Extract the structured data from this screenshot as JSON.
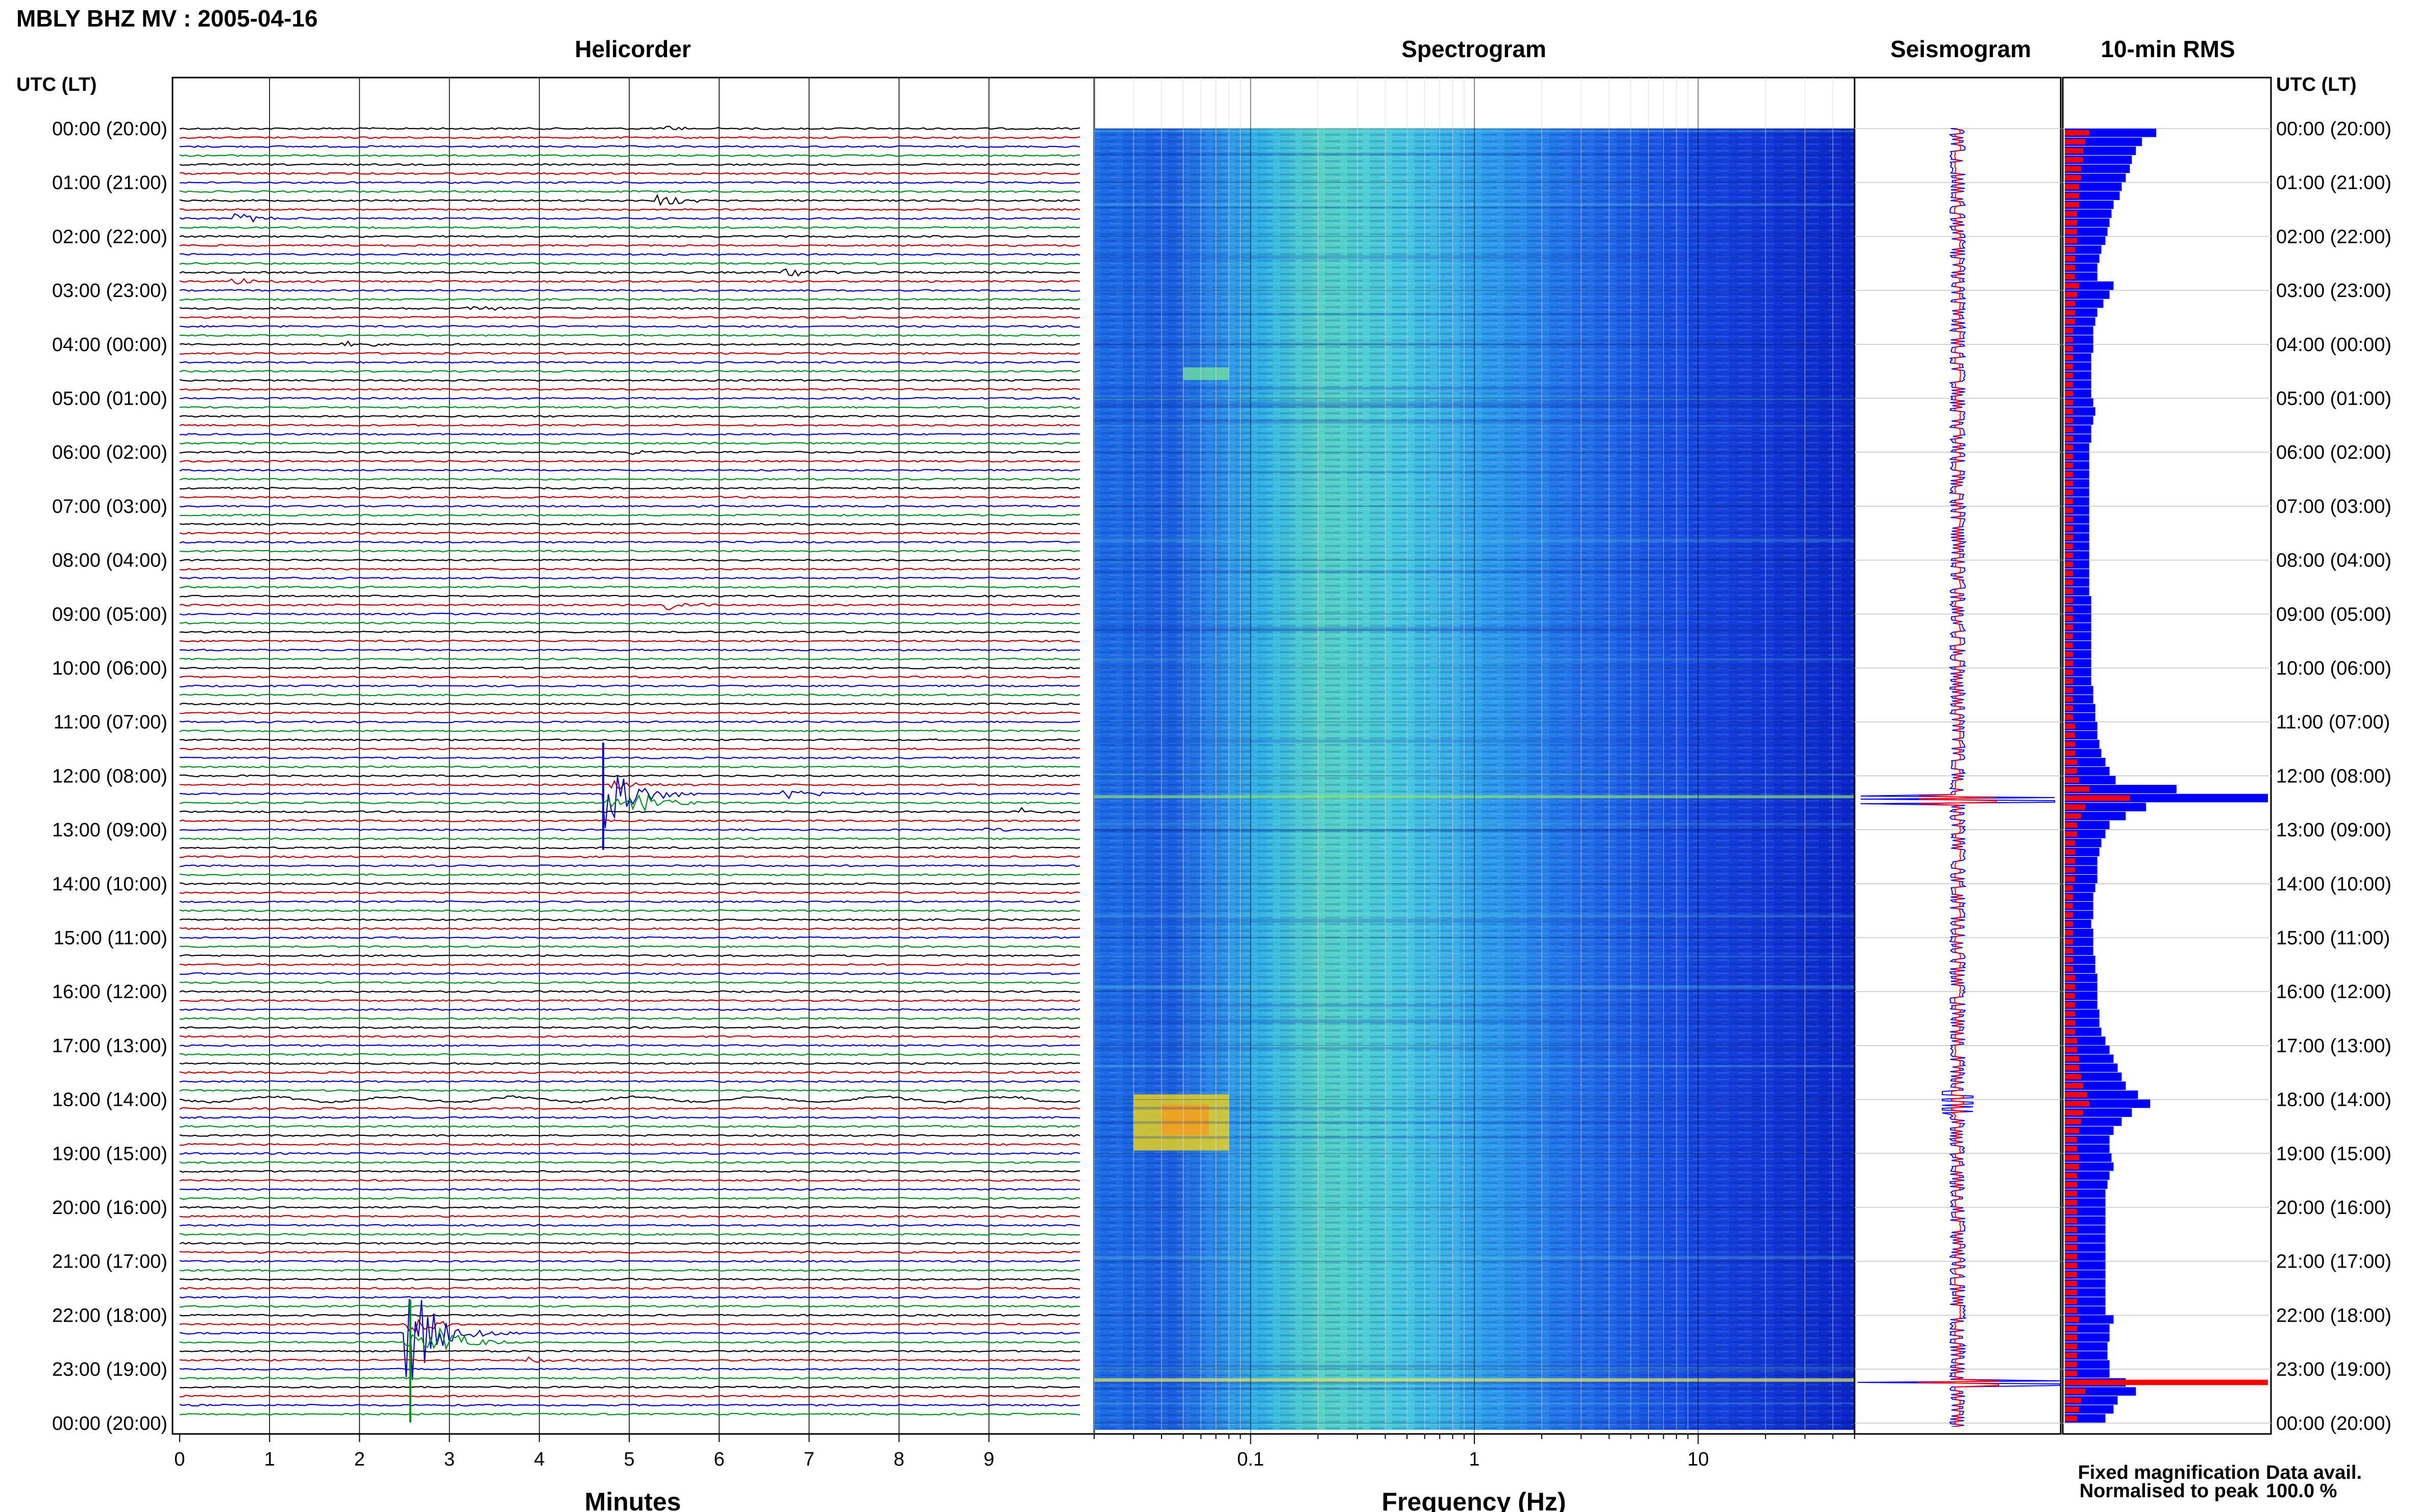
{
  "title": "MBLY BHZ MV : 2005-04-16",
  "colors": {
    "black": "#000000",
    "red": "#c00000",
    "blue": "#0000c8",
    "green": "#00901e",
    "rms_fixed": "#0000ff",
    "rms_norm": "#ff0000",
    "grid": "#c8c8c8"
  },
  "panels": {
    "helicorder": "Helicorder",
    "spectrogram": "Spectrogram",
    "seismogram": "Seismogram",
    "rms": "10-min RMS"
  },
  "axis_header_left": "UTC (LT)",
  "axis_header_right": "UTC (LT)",
  "time_labels": [
    "00:00 (20:00)",
    "01:00 (21:00)",
    "02:00 (22:00)",
    "03:00 (23:00)",
    "04:00 (00:00)",
    "05:00 (01:00)",
    "06:00 (02:00)",
    "07:00 (03:00)",
    "08:00 (04:00)",
    "09:00 (05:00)",
    "10:00 (06:00)",
    "11:00 (07:00)",
    "12:00 (08:00)",
    "13:00 (09:00)",
    "14:00 (10:00)",
    "15:00 (11:00)",
    "16:00 (12:00)",
    "17:00 (13:00)",
    "18:00 (14:00)",
    "19:00 (15:00)",
    "20:00 (16:00)",
    "21:00 (17:00)",
    "22:00 (18:00)",
    "23:00 (19:00)",
    "00:00 (20:00)"
  ],
  "helicorder": {
    "xlabel": "Minutes",
    "xticks": [
      "0",
      "1",
      "2",
      "3",
      "4",
      "5",
      "6",
      "7",
      "8",
      "9"
    ],
    "trace_colors_cycle": [
      "black",
      "red",
      "blue",
      "green"
    ],
    "traces_per_hour": 6,
    "events": [
      {
        "trace": 0,
        "minute": 5.4,
        "amp": 0.35
      },
      {
        "trace": 8,
        "minute": 5.3,
        "amp": 0.9
      },
      {
        "trace": 10,
        "minute": 0.6,
        "amp": 0.7
      },
      {
        "trace": 16,
        "minute": 6.7,
        "amp": 1.0
      },
      {
        "trace": 17,
        "minute": 0.55,
        "amp": 0.6
      },
      {
        "trace": 20,
        "minute": 3.2,
        "amp": 0.4
      },
      {
        "trace": 24,
        "minute": 1.8,
        "amp": 0.45
      },
      {
        "trace": 36,
        "minute": 5.0,
        "amp": 0.35
      },
      {
        "trace": 53,
        "minute": 5.4,
        "amp": 0.9
      },
      {
        "trace": 74,
        "minute": 4.7,
        "amp": 5.5
      },
      {
        "trace": 75,
        "minute": 5.0,
        "amp": 2.2
      },
      {
        "trace": 74,
        "minute": 6.7,
        "amp": 0.8
      },
      {
        "trace": 76,
        "minute": 9.35,
        "amp": 0.5
      },
      {
        "trace": 78,
        "minute": 8.9,
        "amp": 0.3
      },
      {
        "trace": 134,
        "minute": 2.5,
        "amp": 9.0
      },
      {
        "trace": 135,
        "minute": 2.8,
        "amp": 3.0
      },
      {
        "trace": 137,
        "minute": 3.8,
        "amp": 0.5
      }
    ],
    "noisy_trace": 108
  },
  "spectrogram": {
    "xlabel": "Frequency (Hz)",
    "xticks": [
      "0.1",
      "1",
      "10"
    ],
    "freq_range": [
      0.02,
      50
    ]
  },
  "rms_legend": {
    "fixed": "Fixed magnification",
    "normalised": "Normalised to peak"
  },
  "data_avail": {
    "label": "Data avail.",
    "value": "100.0 %"
  },
  "chart_data": {
    "type": "line",
    "title": "MBLY BHZ MV : 2005-04-16",
    "panels": [
      "Helicorder",
      "Spectrogram",
      "Seismogram",
      "10-min RMS"
    ],
    "y_tick_labels": "UTC (LT) hourly 00:00 (20:00) to 00:00 (20:00)",
    "x_helicorder": {
      "label": "Minutes",
      "ticks": [
        0,
        1,
        2,
        3,
        4,
        5,
        6,
        7,
        8,
        9
      ],
      "range": [
        0,
        10
      ]
    },
    "x_spectrogram": {
      "label": "Frequency (Hz)",
      "ticks": [
        0.1,
        1,
        10
      ],
      "scale": "log"
    },
    "rms_fixed": [
      0.45,
      0.38,
      0.35,
      0.33,
      0.32,
      0.3,
      0.28,
      0.27,
      0.24,
      0.23,
      0.22,
      0.21,
      0.2,
      0.18,
      0.17,
      0.16,
      0.16,
      0.24,
      0.22,
      0.19,
      0.16,
      0.15,
      0.14,
      0.14,
      0.14,
      0.13,
      0.13,
      0.13,
      0.13,
      0.13,
      0.14,
      0.15,
      0.14,
      0.13,
      0.13,
      0.12,
      0.12,
      0.12,
      0.12,
      0.12,
      0.12,
      0.12,
      0.12,
      0.12,
      0.12,
      0.12,
      0.12,
      0.12,
      0.12,
      0.12,
      0.12,
      0.12,
      0.13,
      0.13,
      0.13,
      0.13,
      0.13,
      0.13,
      0.13,
      0.13,
      0.13,
      0.13,
      0.14,
      0.14,
      0.15,
      0.15,
      0.16,
      0.16,
      0.17,
      0.18,
      0.2,
      0.22,
      0.25,
      0.55,
      1.0,
      0.4,
      0.3,
      0.22,
      0.2,
      0.18,
      0.17,
      0.16,
      0.16,
      0.16,
      0.15,
      0.14,
      0.14,
      0.14,
      0.13,
      0.14,
      0.14,
      0.14,
      0.15,
      0.15,
      0.16,
      0.16,
      0.16,
      0.16,
      0.17,
      0.17,
      0.18,
      0.2,
      0.22,
      0.24,
      0.26,
      0.28,
      0.3,
      0.36,
      0.42,
      0.33,
      0.28,
      0.24,
      0.22,
      0.22,
      0.23,
      0.24,
      0.22,
      0.21,
      0.2,
      0.2,
      0.2,
      0.2,
      0.2,
      0.2,
      0.2,
      0.2,
      0.2,
      0.2,
      0.2,
      0.2,
      0.2,
      0.2,
      0.24,
      0.22,
      0.22,
      0.21,
      0.21,
      0.22,
      0.22,
      0.3,
      0.35,
      0.26,
      0.24,
      0.2
    ],
    "rms_normalised": [
      0.12,
      0.1,
      0.09,
      0.09,
      0.08,
      0.08,
      0.07,
      0.07,
      0.07,
      0.06,
      0.06,
      0.06,
      0.06,
      0.05,
      0.05,
      0.05,
      0.05,
      0.07,
      0.06,
      0.05,
      0.05,
      0.05,
      0.04,
      0.04,
      0.04,
      0.04,
      0.04,
      0.04,
      0.04,
      0.04,
      0.04,
      0.04,
      0.04,
      0.04,
      0.04,
      0.04,
      0.04,
      0.04,
      0.04,
      0.04,
      0.04,
      0.04,
      0.04,
      0.04,
      0.04,
      0.04,
      0.04,
      0.04,
      0.04,
      0.04,
      0.04,
      0.04,
      0.04,
      0.04,
      0.04,
      0.04,
      0.04,
      0.04,
      0.04,
      0.04,
      0.04,
      0.04,
      0.04,
      0.04,
      0.04,
      0.04,
      0.05,
      0.05,
      0.05,
      0.05,
      0.06,
      0.06,
      0.07,
      0.12,
      0.32,
      0.1,
      0.08,
      0.06,
      0.06,
      0.05,
      0.05,
      0.05,
      0.05,
      0.05,
      0.04,
      0.04,
      0.04,
      0.04,
      0.04,
      0.04,
      0.04,
      0.04,
      0.04,
      0.04,
      0.05,
      0.05,
      0.05,
      0.05,
      0.05,
      0.05,
      0.05,
      0.06,
      0.06,
      0.07,
      0.07,
      0.08,
      0.09,
      0.11,
      0.12,
      0.09,
      0.08,
      0.07,
      0.06,
      0.06,
      0.07,
      0.07,
      0.06,
      0.06,
      0.06,
      0.06,
      0.06,
      0.06,
      0.06,
      0.06,
      0.06,
      0.06,
      0.06,
      0.06,
      0.06,
      0.06,
      0.06,
      0.06,
      0.07,
      0.06,
      0.06,
      0.06,
      0.06,
      0.06,
      0.06,
      1.0,
      0.1,
      0.08,
      0.07,
      0.06
    ]
  }
}
